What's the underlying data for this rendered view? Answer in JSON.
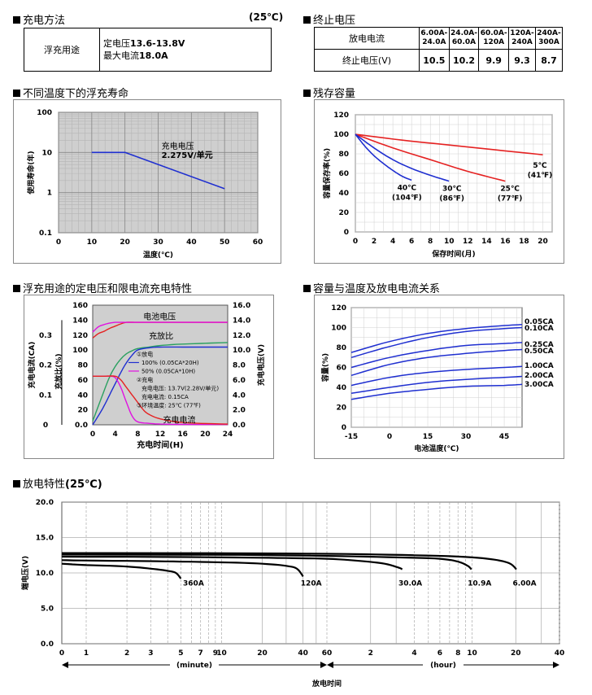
{
  "charge_method": {
    "title": "充电方法",
    "temp": "(25℃)",
    "row_label": "浮充用途",
    "line1_prefix": "定电压",
    "line1_value": "13.6-13.8V",
    "line2_prefix": "最大电流",
    "line2_value": "18.0A"
  },
  "end_voltage": {
    "title": "终止电压",
    "row1_label": "放电电流",
    "row2_label": "终止电压(V)",
    "currents": [
      [
        "6.00A-",
        "24.0A"
      ],
      [
        "24.0A-",
        "60.0A"
      ],
      [
        "60.0A-",
        "120A"
      ],
      [
        "120A-",
        "240A"
      ],
      [
        "240A-",
        "300A"
      ]
    ],
    "voltages": [
      "10.5",
      "10.2",
      "9.9",
      "9.3",
      "8.7"
    ]
  },
  "float_life": {
    "title": "不同温度下的浮充寿命",
    "chart_data": {
      "type": "line",
      "xlabel": "温度(℃)",
      "ylabel": "使用寿命(年)",
      "x_ticks": [
        "0",
        "10",
        "20",
        "30",
        "40",
        "50",
        "60"
      ],
      "y_ticks": [
        "0.1",
        "1",
        "10",
        "100"
      ],
      "xlim": [
        0,
        60
      ],
      "ylim": [
        0.1,
        100
      ],
      "y_scale": "log",
      "grid": true,
      "annotation_line1": "充电电压",
      "annotation_line2": "2.275V/单元",
      "series": [
        {
          "x": [
            10,
            20,
            50
          ],
          "y": [
            10,
            10,
            1.25
          ],
          "color": "#1f2fd0"
        }
      ]
    }
  },
  "storage": {
    "title": "残存容量",
    "chart_data": {
      "type": "line",
      "xlabel": "保存时间(月)",
      "ylabel": "容量保存率(%)",
      "x_ticks": [
        "0",
        "2",
        "4",
        "6",
        "8",
        "10",
        "12",
        "14",
        "16",
        "18",
        "20"
      ],
      "y_ticks": [
        "0",
        "20",
        "40",
        "60",
        "80",
        "100",
        "120"
      ],
      "xlim": [
        0,
        21
      ],
      "ylim": [
        0,
        120
      ],
      "grid": true,
      "series": [
        {
          "name_c": "5℃",
          "name_f": "(41℉)",
          "color": "#e52222",
          "x": [
            0,
            5,
            10,
            15,
            20
          ],
          "y": [
            100,
            94,
            89,
            84,
            79
          ]
        },
        {
          "name_c": "25℃",
          "name_f": "(77℉)",
          "color": "#e52222",
          "x": [
            0,
            4,
            8,
            12,
            16
          ],
          "y": [
            100,
            86,
            74,
            62,
            52
          ]
        },
        {
          "name_c": "30℃",
          "name_f": "(86℉)",
          "color": "#1f2fd0",
          "x": [
            0,
            2,
            4,
            6,
            8,
            10
          ],
          "y": [
            100,
            86,
            74,
            65,
            58,
            52
          ]
        },
        {
          "name_c": "40℃",
          "name_f": "(104℉)",
          "color": "#1f2fd0",
          "x": [
            0,
            1,
            2,
            3,
            4,
            5,
            6
          ],
          "y": [
            100,
            88,
            78,
            70,
            63,
            57,
            53
          ]
        }
      ]
    }
  },
  "charge_char": {
    "title": "浮充用途的定电压和限电流充电特性",
    "chart_data": {
      "type": "line",
      "xlabel": "充电时间(H)",
      "ylabel_left_outer": "充电电流(CA)",
      "ylabel_left_inner": "充放比(%)",
      "ylabel_right": "充电电压(V)",
      "x_ticks": [
        "0",
        "4",
        "8",
        "12",
        "16",
        "20",
        "24"
      ],
      "y_ticks_left": [
        "0.0",
        "20",
        "40",
        "60",
        "80",
        "100",
        "120",
        "140",
        "160"
      ],
      "y_ticks_current": [
        "0",
        "0.1",
        "0.2",
        "0.3"
      ],
      "y_ticks_right": [
        "0.0",
        "2.0",
        "4.0",
        "6.0",
        "8.0",
        "10.0",
        "12.0",
        "14.0",
        "16.0"
      ],
      "xlim": [
        0,
        24
      ],
      "ylim_left": [
        0,
        160
      ],
      "ylim_right": [
        0,
        16
      ],
      "label_voltage": "电池电压",
      "label_ratio": "充放比",
      "label_current": "充电电流",
      "legend": [
        "①放电",
        "100% (0.05CA*20H)",
        "50% (0.05CA*10H)",
        "②充电",
        "充电电压: 13.7V(2.28V/单元)",
        "充电电流: 0.15CA",
        "③环境温度: 25℃ (77℉)"
      ],
      "series": [
        {
          "color": "#e52222",
          "x": [
            0,
            1,
            2,
            3,
            4,
            5,
            6,
            8,
            12,
            24
          ],
          "y": [
            11.6,
            12.2,
            12.5,
            12.9,
            13.2,
            13.5,
            13.7,
            13.7,
            13.7,
            13.7
          ],
          "axis": "right"
        },
        {
          "color": "#e010e0",
          "x": [
            0,
            1,
            2,
            3,
            4,
            5,
            6,
            8,
            12,
            24
          ],
          "y": [
            12.4,
            13.1,
            13.4,
            13.6,
            13.7,
            13.7,
            13.7,
            13.7,
            13.7,
            13.7
          ],
          "axis": "right"
        },
        {
          "color": "#2aa060",
          "x": [
            0,
            1,
            2,
            3,
            4,
            5,
            6,
            7,
            8,
            10,
            12,
            16,
            24
          ],
          "y": [
            5,
            25,
            45,
            64,
            78,
            88,
            95,
            99,
            102,
            104,
            106,
            108,
            110
          ],
          "axis": "left"
        },
        {
          "color": "#1f2fd0",
          "x": [
            0,
            1,
            2,
            3,
            4,
            5,
            6,
            7,
            8,
            10,
            12,
            16,
            24
          ],
          "y": [
            0,
            12,
            25,
            40,
            55,
            70,
            83,
            93,
            100,
            103,
            104,
            104,
            104
          ],
          "axis": "left"
        },
        {
          "color": "#e010e0",
          "x": [
            0,
            2,
            3,
            4,
            5,
            6,
            7,
            8,
            10,
            12,
            16,
            24
          ],
          "y": [
            65,
            65,
            65,
            63,
            50,
            30,
            12,
            4,
            2,
            1,
            0.5,
            0.5
          ],
          "axis": "left"
        },
        {
          "color": "#e52222",
          "x": [
            0,
            2,
            4,
            5,
            6,
            7,
            8,
            9,
            10,
            12,
            16,
            24
          ],
          "y": [
            65,
            65,
            65,
            60,
            50,
            40,
            30,
            20,
            14,
            8,
            3,
            1
          ],
          "axis": "left"
        }
      ]
    }
  },
  "capacity_temp": {
    "title": "容量与温度及放电电流关系",
    "chart_data": {
      "type": "line",
      "xlabel": "电池温度(℃)",
      "ylabel": "容量(%)",
      "x_ticks": [
        "-15",
        "0",
        "15",
        "30",
        "45"
      ],
      "y_ticks": [
        "0",
        "20",
        "40",
        "60",
        "80",
        "100",
        "120"
      ],
      "xlim": [
        -15,
        52
      ],
      "ylim": [
        0,
        120
      ],
      "grid": true,
      "series": [
        {
          "name": "0.05CA",
          "x": [
            -15,
            0,
            15,
            30,
            45,
            52
          ],
          "y": [
            75,
            86,
            94,
            99,
            102,
            103
          ]
        },
        {
          "name": "0.10CA",
          "x": [
            -15,
            0,
            15,
            30,
            45,
            52
          ],
          "y": [
            70,
            81,
            90,
            96,
            99,
            100
          ]
        },
        {
          "name": "0.25CA",
          "x": [
            -15,
            0,
            15,
            30,
            45,
            52
          ],
          "y": [
            60,
            70,
            77,
            82,
            84,
            85
          ]
        },
        {
          "name": "0.50CA",
          "x": [
            -15,
            0,
            15,
            30,
            45,
            52
          ],
          "y": [
            52,
            63,
            70,
            74,
            77,
            78
          ]
        },
        {
          "name": "1.00CA",
          "x": [
            -15,
            0,
            15,
            30,
            45,
            52
          ],
          "y": [
            42,
            50,
            55,
            58,
            60,
            61
          ]
        },
        {
          "name": "2.00CA",
          "x": [
            -15,
            0,
            15,
            30,
            45,
            52
          ],
          "y": [
            34,
            40,
            45,
            48,
            50,
            51
          ]
        },
        {
          "name": "3.00CA",
          "x": [
            -15,
            0,
            15,
            30,
            45,
            52
          ],
          "y": [
            28,
            34,
            38,
            41,
            42,
            43
          ]
        }
      ]
    }
  },
  "discharge": {
    "title": "放电特性",
    "temp": "(25℃)",
    "chart_data": {
      "type": "line",
      "xlabel": "放电时间",
      "ylabel": "端电压(V)",
      "y_ticks": [
        "0.0",
        "5.0",
        "10.0",
        "15.0",
        "20.0"
      ],
      "ylim": [
        0,
        20
      ],
      "minute_ticks": [
        "0",
        "1",
        "2",
        "3",
        "5",
        "7",
        "9",
        "10",
        "20",
        "40",
        "60"
      ],
      "hour_ticks": [
        "2",
        "4",
        "6",
        "8",
        "10",
        "20",
        "40"
      ],
      "unit_minute": "(minute)",
      "unit_hour": "(hour)",
      "series": [
        {
          "name": "360A",
          "label_min": 5.4,
          "points": [
            [
              0,
              11.3
            ],
            [
              1,
              11.1
            ],
            [
              2,
              10.9
            ],
            [
              3,
              10.6
            ],
            [
              4,
              10.3
            ],
            [
              4.6,
              10.0
            ],
            [
              5,
              9.2
            ]
          ]
        },
        {
          "name": "120A",
          "label_min": 40,
          "points": [
            [
              0,
              11.8
            ],
            [
              2,
              11.7
            ],
            [
              5,
              11.6
            ],
            [
              10,
              11.5
            ],
            [
              20,
              11.3
            ],
            [
              30,
              11.0
            ],
            [
              36,
              10.6
            ],
            [
              40,
              9.5
            ]
          ]
        },
        {
          "name": "30.0A",
          "label_min": 198,
          "points": [
            [
              0,
              12.3
            ],
            [
              10,
              12.2
            ],
            [
              30,
              12.1
            ],
            [
              60,
              12.0
            ],
            [
              100,
              11.7
            ],
            [
              150,
              11.3
            ],
            [
              190,
              10.7
            ],
            [
              198,
              10.5
            ]
          ]
        },
        {
          "name": "10.9A",
          "label_min": 594,
          "points": [
            [
              0,
              12.6
            ],
            [
              60,
              12.4
            ],
            [
              180,
              12.2
            ],
            [
              360,
              12.0
            ],
            [
              480,
              11.6
            ],
            [
              560,
              11.0
            ],
            [
              594,
              10.5
            ]
          ]
        },
        {
          "name": "6.00A",
          "label_min": 1212,
          "points": [
            [
              0,
              12.8
            ],
            [
              60,
              12.7
            ],
            [
              240,
              12.5
            ],
            [
              600,
              12.2
            ],
            [
              900,
              11.8
            ],
            [
              1100,
              11.3
            ],
            [
              1212,
              10.5
            ]
          ]
        }
      ]
    }
  }
}
